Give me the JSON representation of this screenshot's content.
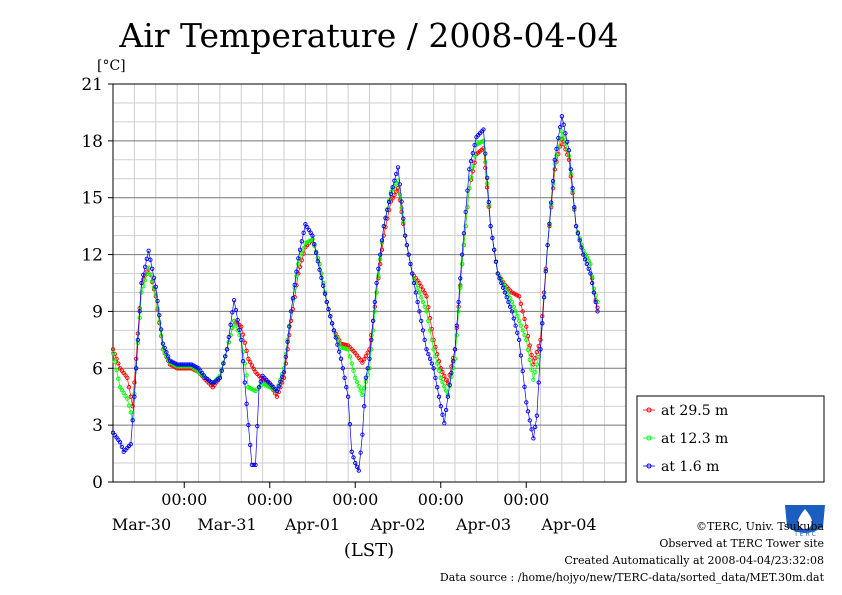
{
  "chart_data": {
    "type": "line",
    "title": "Air Temperature / 2008-04-04",
    "ylabel": "[°C]",
    "xlabel": "(LST)",
    "ylim": [
      0,
      21
    ],
    "yticks": [
      0,
      3,
      6,
      9,
      12,
      15,
      18,
      21
    ],
    "xlim_hours": [
      0,
      144
    ],
    "time_ticks": [
      "00:00",
      "00:00",
      "00:00",
      "00:00",
      "00:00"
    ],
    "day_labels": [
      "Mar-30",
      "Mar-31",
      "Apr-01",
      "Apr-02",
      "Apr-03",
      "Apr-04"
    ],
    "grid": true,
    "legend_position": "right",
    "series": [
      {
        "name": "at 29.5 m",
        "color": "#ff0000",
        "points": [
          [
            0,
            7.0
          ],
          [
            2,
            6.0
          ],
          [
            4,
            5.5
          ],
          [
            5.5,
            4.0
          ],
          [
            6.5,
            6.5
          ],
          [
            8,
            10.5
          ],
          [
            10,
            11.3
          ],
          [
            12,
            9.8
          ],
          [
            14,
            7.0
          ],
          [
            16,
            6.2
          ],
          [
            18,
            6.0
          ],
          [
            20,
            6.0
          ],
          [
            22,
            6.0
          ],
          [
            24,
            5.8
          ],
          [
            26,
            5.4
          ],
          [
            28,
            5.0
          ],
          [
            30,
            5.5
          ],
          [
            32,
            7.0
          ],
          [
            34,
            8.5
          ],
          [
            36,
            8.2
          ],
          [
            38,
            6.5
          ],
          [
            40,
            5.8
          ],
          [
            42,
            5.4
          ],
          [
            44,
            5.2
          ],
          [
            46,
            4.5
          ],
          [
            48,
            5.5
          ],
          [
            50,
            8.5
          ],
          [
            52,
            11.0
          ],
          [
            54,
            12.4
          ],
          [
            56,
            12.8
          ],
          [
            58,
            11.5
          ],
          [
            60,
            9.5
          ],
          [
            62,
            8.0
          ],
          [
            64,
            7.3
          ],
          [
            66,
            7.2
          ],
          [
            68,
            6.8
          ],
          [
            70,
            6.3
          ],
          [
            72,
            7.0
          ],
          [
            74,
            10.0
          ],
          [
            76,
            13.0
          ],
          [
            78,
            14.8
          ],
          [
            80,
            15.5
          ],
          [
            82,
            13.0
          ],
          [
            84,
            11.0
          ],
          [
            86,
            10.5
          ],
          [
            88,
            9.8
          ],
          [
            90,
            7.5
          ],
          [
            92,
            6.0
          ],
          [
            94,
            5.2
          ],
          [
            96,
            7.0
          ],
          [
            98,
            11.5
          ],
          [
            100,
            15.5
          ],
          [
            102,
            17.3
          ],
          [
            104,
            17.6
          ],
          [
            106,
            13.5
          ],
          [
            108,
            11.0
          ],
          [
            110,
            10.4
          ],
          [
            112,
            10.0
          ],
          [
            114,
            9.8
          ],
          [
            116,
            8.2
          ],
          [
            118,
            6.2
          ],
          [
            120,
            7.5
          ],
          [
            122,
            12.5
          ],
          [
            124,
            16.5
          ],
          [
            126,
            18.1
          ],
          [
            128,
            17.0
          ],
          [
            130,
            13.5
          ],
          [
            132,
            12.2
          ],
          [
            134,
            11.5
          ],
          [
            135,
            10.0
          ],
          [
            136,
            9.2
          ]
        ]
      },
      {
        "name": "at 12.3 m",
        "color": "#00ff00",
        "points": [
          [
            0,
            6.8
          ],
          [
            2,
            5.0
          ],
          [
            4,
            4.4
          ],
          [
            5.5,
            3.3
          ],
          [
            6.5,
            6.0
          ],
          [
            8,
            10.0
          ],
          [
            10,
            11.3
          ],
          [
            12,
            9.9
          ],
          [
            14,
            7.0
          ],
          [
            16,
            6.3
          ],
          [
            18,
            6.1
          ],
          [
            20,
            6.1
          ],
          [
            22,
            6.1
          ],
          [
            24,
            5.8
          ],
          [
            26,
            5.5
          ],
          [
            28,
            5.2
          ],
          [
            30,
            5.6
          ],
          [
            32,
            7.0
          ],
          [
            34,
            8.5
          ],
          [
            36,
            7.5
          ],
          [
            38,
            5.0
          ],
          [
            40,
            4.8
          ],
          [
            42,
            5.2
          ],
          [
            44,
            5.0
          ],
          [
            46,
            4.8
          ],
          [
            48,
            6.0
          ],
          [
            50,
            9.0
          ],
          [
            52,
            11.5
          ],
          [
            54,
            12.6
          ],
          [
            56,
            12.8
          ],
          [
            58,
            11.5
          ],
          [
            60,
            9.5
          ],
          [
            62,
            8.0
          ],
          [
            64,
            7.1
          ],
          [
            66,
            7.0
          ],
          [
            68,
            5.5
          ],
          [
            70,
            4.6
          ],
          [
            72,
            6.0
          ],
          [
            74,
            10.0
          ],
          [
            76,
            13.5
          ],
          [
            78,
            15.3
          ],
          [
            80,
            15.9
          ],
          [
            82,
            13.0
          ],
          [
            84,
            11.0
          ],
          [
            86,
            10.0
          ],
          [
            88,
            9.0
          ],
          [
            90,
            7.0
          ],
          [
            92,
            5.5
          ],
          [
            94,
            4.6
          ],
          [
            96,
            6.5
          ],
          [
            98,
            11.5
          ],
          [
            100,
            15.5
          ],
          [
            102,
            17.8
          ],
          [
            104,
            18.0
          ],
          [
            106,
            13.5
          ],
          [
            108,
            11.0
          ],
          [
            110,
            10.3
          ],
          [
            112,
            9.5
          ],
          [
            114,
            8.5
          ],
          [
            116,
            7.5
          ],
          [
            118,
            5.4
          ],
          [
            120,
            7.0
          ],
          [
            122,
            12.5
          ],
          [
            124,
            16.8
          ],
          [
            126,
            18.5
          ],
          [
            128,
            17.2
          ],
          [
            130,
            13.5
          ],
          [
            132,
            12.2
          ],
          [
            134,
            11.5
          ],
          [
            135,
            10.2
          ],
          [
            136,
            9.5
          ]
        ]
      },
      {
        "name": "at 1.6 m",
        "color": "#0000ff",
        "points": [
          [
            0,
            2.6
          ],
          [
            2,
            2.1
          ],
          [
            3,
            1.6
          ],
          [
            5,
            2.0
          ],
          [
            6,
            4.5
          ],
          [
            8,
            10.5
          ],
          [
            10,
            12.2
          ],
          [
            12,
            10.3
          ],
          [
            14,
            7.3
          ],
          [
            16,
            6.4
          ],
          [
            18,
            6.2
          ],
          [
            20,
            6.2
          ],
          [
            22,
            6.2
          ],
          [
            24,
            6.0
          ],
          [
            26,
            5.5
          ],
          [
            28,
            5.2
          ],
          [
            30,
            5.5
          ],
          [
            32,
            7.0
          ],
          [
            34,
            9.6
          ],
          [
            36,
            7.5
          ],
          [
            38,
            3.0
          ],
          [
            39,
            0.9
          ],
          [
            40,
            0.9
          ],
          [
            41,
            5.0
          ],
          [
            42,
            5.6
          ],
          [
            44,
            5.2
          ],
          [
            46,
            4.8
          ],
          [
            48,
            5.8
          ],
          [
            50,
            9.0
          ],
          [
            52,
            11.8
          ],
          [
            54,
            13.6
          ],
          [
            56,
            13.0
          ],
          [
            58,
            11.2
          ],
          [
            60,
            9.5
          ],
          [
            62,
            8.0
          ],
          [
            64,
            6.5
          ],
          [
            66,
            4.5
          ],
          [
            67,
            1.6
          ],
          [
            68,
            1.0
          ],
          [
            69,
            0.6
          ],
          [
            70,
            2.5
          ],
          [
            71,
            5.5
          ],
          [
            72,
            6.5
          ],
          [
            74,
            10.5
          ],
          [
            76,
            13.5
          ],
          [
            78,
            15.2
          ],
          [
            80,
            16.6
          ],
          [
            82,
            13.0
          ],
          [
            84,
            11.0
          ],
          [
            86,
            9.0
          ],
          [
            88,
            7.0
          ],
          [
            90,
            6.0
          ],
          [
            92,
            4.0
          ],
          [
            93,
            3.1
          ],
          [
            94,
            4.5
          ],
          [
            96,
            7.0
          ],
          [
            98,
            12.0
          ],
          [
            100,
            16.5
          ],
          [
            102,
            18.2
          ],
          [
            104,
            18.6
          ],
          [
            106,
            13.5
          ],
          [
            108,
            11.0
          ],
          [
            110,
            10.0
          ],
          [
            112,
            9.0
          ],
          [
            114,
            7.5
          ],
          [
            116,
            4.2
          ],
          [
            118,
            2.3
          ],
          [
            119,
            3.5
          ],
          [
            120,
            7.0
          ],
          [
            122,
            12.5
          ],
          [
            124,
            17.0
          ],
          [
            126,
            19.3
          ],
          [
            128,
            17.5
          ],
          [
            130,
            13.5
          ],
          [
            132,
            12.0
          ],
          [
            134,
            11.0
          ],
          [
            135,
            10.0
          ],
          [
            136,
            9.0
          ]
        ]
      }
    ]
  },
  "footer": {
    "copyright": "©TERC, Univ. Tsukuba",
    "observed": "Observed at TERC Tower site",
    "created": "Created Automatically at 2008-04-04/23:32:08",
    "source": "Data source : /home/hojyo/new/TERC-data/sorted_data/MET.30m.dat"
  },
  "logo": {
    "text": "T E R C",
    "color": "#1a5fbf"
  }
}
